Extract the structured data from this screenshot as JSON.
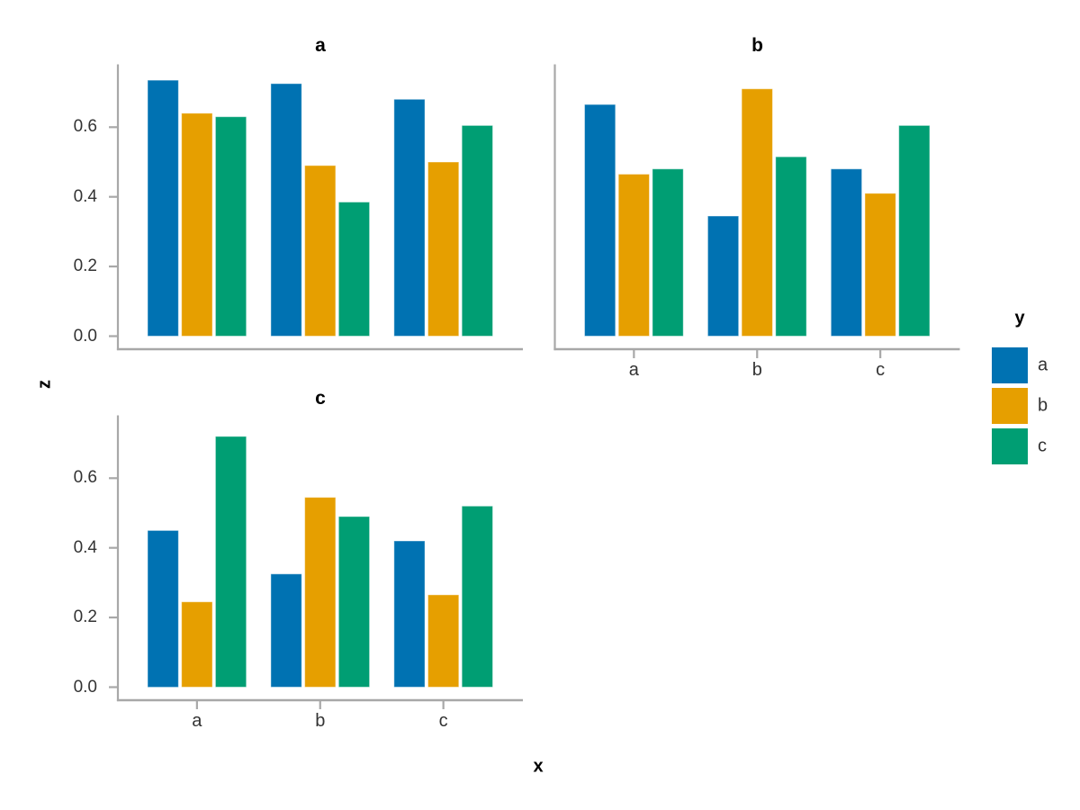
{
  "chart_data": {
    "type": "bar",
    "layout": "faceted grouped bar chart, 2x2 facet grid: a top-left, b top-right, c bottom-left, legend at right",
    "title": "",
    "xlabel": "x",
    "ylabel": "z",
    "categories": [
      "a",
      "b",
      "c"
    ],
    "y_ticks": [
      0.0,
      0.2,
      0.4,
      0.6
    ],
    "y_tick_labels": [
      "0.0",
      "0.2",
      "0.4",
      "0.6"
    ],
    "ylim": [
      0,
      0.78
    ],
    "grid": false,
    "legend": {
      "title": "y",
      "position": "right",
      "entries": [
        {
          "label": "a",
          "color": "#0072B2"
        },
        {
          "label": "b",
          "color": "#E69F00"
        },
        {
          "label": "c",
          "color": "#009E73"
        }
      ]
    },
    "facets": [
      {
        "title": "a",
        "show_y_axis_labels": true,
        "show_x_axis_labels": false,
        "series": [
          {
            "name": "a",
            "values": [
              0.735,
              0.725,
              0.68
            ]
          },
          {
            "name": "b",
            "values": [
              0.64,
              0.49,
              0.5
            ]
          },
          {
            "name": "c",
            "values": [
              0.63,
              0.385,
              0.605
            ]
          }
        ]
      },
      {
        "title": "b",
        "show_y_axis_labels": false,
        "show_x_axis_labels": true,
        "series": [
          {
            "name": "a",
            "values": [
              0.665,
              0.345,
              0.48
            ]
          },
          {
            "name": "b",
            "values": [
              0.465,
              0.71,
              0.41
            ]
          },
          {
            "name": "c",
            "values": [
              0.48,
              0.515,
              0.605
            ]
          }
        ]
      },
      {
        "title": "c",
        "show_y_axis_labels": true,
        "show_x_axis_labels": true,
        "series": [
          {
            "name": "a",
            "values": [
              0.45,
              0.325,
              0.42
            ]
          },
          {
            "name": "b",
            "values": [
              0.245,
              0.545,
              0.265
            ]
          },
          {
            "name": "c",
            "values": [
              0.72,
              0.49,
              0.52
            ]
          }
        ]
      }
    ],
    "colors": {
      "series_a": "#0072B2",
      "series_b": "#E69F00",
      "series_c": "#009E73",
      "axis_line": "#A8A8A8",
      "tick_label": "#333333",
      "title_text": "#000000",
      "background": "#FFFFFF"
    }
  }
}
